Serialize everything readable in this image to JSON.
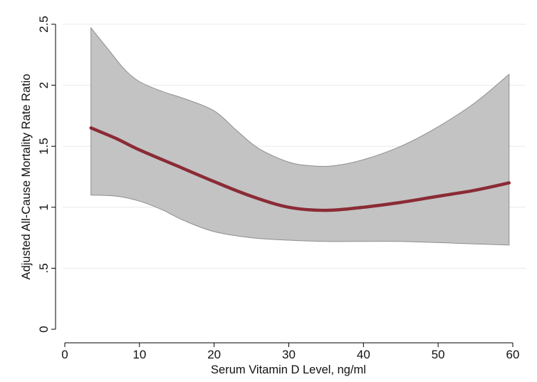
{
  "chart_data": {
    "type": "line",
    "title": "",
    "xlabel": "Serum Vitamin D Level, ng/ml",
    "ylabel": "Adjusted All-Cause Mortality Rate Ratio",
    "xlim": [
      0,
      60
    ],
    "ylim": [
      0,
      2.5
    ],
    "x_ticks": [
      0,
      10,
      20,
      30,
      40,
      50,
      60
    ],
    "x_tick_labels": [
      "0",
      "10",
      "20",
      "30",
      "40",
      "50",
      "60"
    ],
    "y_ticks": [
      0,
      0.5,
      1,
      1.5,
      2,
      2.5
    ],
    "y_tick_labels": [
      "0",
      ".5",
      "1",
      "1.5",
      "2",
      "2.5"
    ],
    "grid": "horizontal",
    "legend": "none",
    "colors": {
      "line": "#8b2b35",
      "band": "#c3c3c3",
      "band_edge": "#8e8e8e",
      "grid": "#e9e9e9"
    },
    "series": [
      {
        "values": [
          {
            "x": 3.5,
            "y": 1.65
          },
          {
            "x": 7,
            "y": 1.56
          },
          {
            "x": 10,
            "y": 1.47
          },
          {
            "x": 15,
            "y": 1.34
          },
          {
            "x": 20,
            "y": 1.21
          },
          {
            "x": 25,
            "y": 1.09
          },
          {
            "x": 30,
            "y": 1.0
          },
          {
            "x": 35,
            "y": 0.975
          },
          {
            "x": 40,
            "y": 1.0
          },
          {
            "x": 45,
            "y": 1.04
          },
          {
            "x": 50,
            "y": 1.09
          },
          {
            "x": 55,
            "y": 1.14
          },
          {
            "x": 59.5,
            "y": 1.2
          }
        ]
      }
    ],
    "confidence_band": {
      "upper": [
        {
          "x": 3.5,
          "y": 2.47
        },
        {
          "x": 6,
          "y": 2.28
        },
        {
          "x": 8,
          "y": 2.13
        },
        {
          "x": 10,
          "y": 2.03
        },
        {
          "x": 13,
          "y": 1.95
        },
        {
          "x": 16,
          "y": 1.89
        },
        {
          "x": 20,
          "y": 1.79
        },
        {
          "x": 23,
          "y": 1.63
        },
        {
          "x": 26,
          "y": 1.48
        },
        {
          "x": 30,
          "y": 1.37
        },
        {
          "x": 33,
          "y": 1.34
        },
        {
          "x": 36,
          "y": 1.34
        },
        {
          "x": 40,
          "y": 1.39
        },
        {
          "x": 45,
          "y": 1.5
        },
        {
          "x": 50,
          "y": 1.66
        },
        {
          "x": 55,
          "y": 1.86
        },
        {
          "x": 59.5,
          "y": 2.09
        }
      ],
      "lower": [
        {
          "x": 3.5,
          "y": 1.1
        },
        {
          "x": 7,
          "y": 1.09
        },
        {
          "x": 10,
          "y": 1.05
        },
        {
          "x": 13,
          "y": 0.98
        },
        {
          "x": 16,
          "y": 0.89
        },
        {
          "x": 20,
          "y": 0.8
        },
        {
          "x": 25,
          "y": 0.75
        },
        {
          "x": 30,
          "y": 0.73
        },
        {
          "x": 35,
          "y": 0.72
        },
        {
          "x": 40,
          "y": 0.72
        },
        {
          "x": 45,
          "y": 0.72
        },
        {
          "x": 50,
          "y": 0.71
        },
        {
          "x": 55,
          "y": 0.7
        },
        {
          "x": 59.5,
          "y": 0.69
        }
      ]
    }
  }
}
